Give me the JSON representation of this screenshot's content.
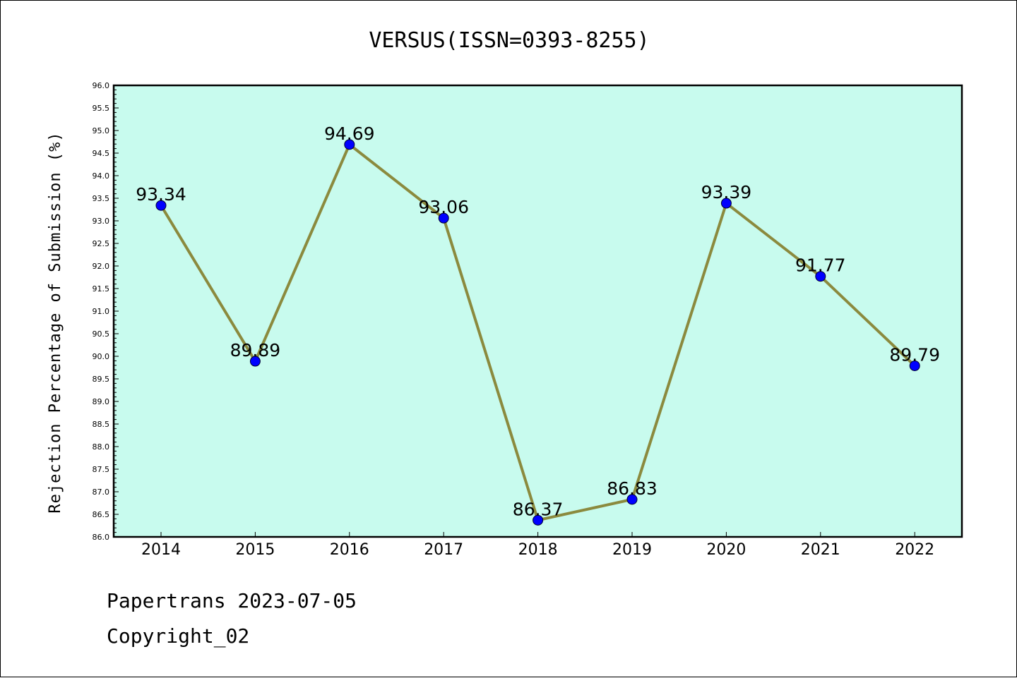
{
  "chart_data": {
    "type": "line",
    "title": "VERSUS(ISSN=0393-8255)",
    "ylabel": "Rejection Percentage of Submission (%)",
    "xlabel": "",
    "categories": [
      "2014",
      "2015",
      "2016",
      "2017",
      "2018",
      "2019",
      "2020",
      "2021",
      "2022"
    ],
    "values": [
      93.34,
      89.89,
      94.69,
      93.06,
      86.37,
      86.83,
      93.39,
      91.77,
      89.79
    ],
    "data_labels": [
      "93.34",
      "89.89",
      "94.69",
      "93.06",
      "86.37",
      "86.83",
      "93.39",
      "91.77",
      "89.79"
    ],
    "ylim": [
      86.0,
      96.0
    ],
    "y_major_step": 0.5,
    "y_tick_labels": [
      "86.0",
      "86.5",
      "87.0",
      "87.5",
      "88.0",
      "88.5",
      "89.0",
      "89.5",
      "90.0",
      "90.5",
      "91.0",
      "91.5",
      "92.0",
      "92.5",
      "93.0",
      "93.5",
      "94.0",
      "94.5",
      "95.0",
      "95.5",
      "96.0"
    ],
    "grid": false,
    "plot_background": "#c8fbee",
    "line_color": "#8b8a3e",
    "marker_color": "#0000ff"
  },
  "footer": {
    "line1": "Papertrans 2023-07-05",
    "line2": "Copyright_02"
  }
}
